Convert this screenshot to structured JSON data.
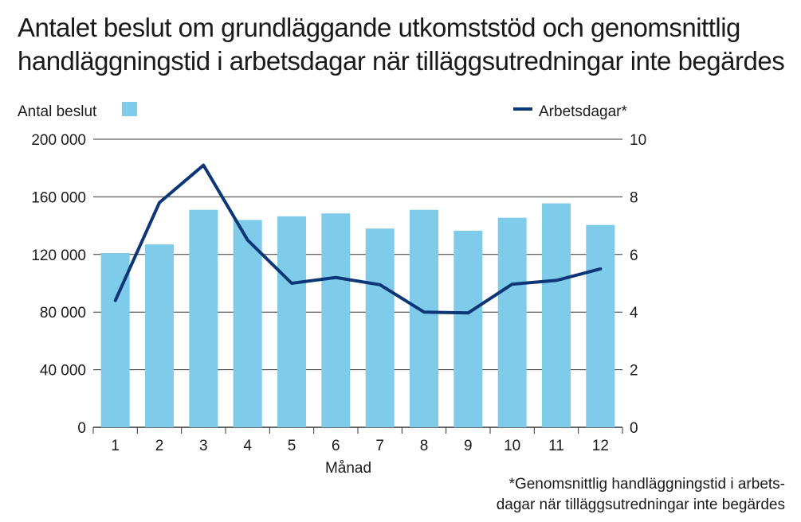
{
  "title": {
    "line1": "Antalet beslut om grundläggande utkomststöd och genomsnittlig",
    "line2": "handläggningstid i arbetsdagar när tilläggsutredningar inte begärdes"
  },
  "legend": {
    "bars_label": "Antal beslut",
    "line_label": "Arbetsdagar*"
  },
  "footnote": {
    "line1": "*Genomsnittlig handläggningstid i arbets-",
    "line2": "dagar när tilläggsutredningar inte begärdes"
  },
  "colors": {
    "bars": "#7fcbea",
    "line": "#0d3677",
    "grid": "#333333"
  },
  "chart_data": {
    "type": "bar",
    "xlabel": "Månad",
    "categories": [
      "1",
      "2",
      "3",
      "4",
      "5",
      "6",
      "7",
      "8",
      "9",
      "10",
      "11",
      "12"
    ],
    "series": [
      {
        "name": "Antal beslut",
        "type": "bar",
        "axis": "left",
        "values": [
          121000,
          127000,
          151000,
          144000,
          146500,
          148500,
          138000,
          151000,
          136500,
          145500,
          155500,
          140500
        ]
      },
      {
        "name": "Arbetsdagar*",
        "type": "line",
        "axis": "right",
        "values": [
          4.4,
          7.8,
          9.1,
          6.5,
          5.0,
          5.2,
          4.95,
          4.0,
          3.97,
          4.97,
          5.1,
          5.5
        ]
      }
    ],
    "y_left": {
      "lim": [
        0,
        200000
      ],
      "ticks": [
        "0",
        "40 000",
        "80 000",
        "120 000",
        "160 000",
        "200 000"
      ]
    },
    "y_right": {
      "lim": [
        0,
        10
      ],
      "ticks": [
        "0",
        "2",
        "4",
        "6",
        "8",
        "10"
      ]
    },
    "grid": true,
    "legend_position": "top"
  }
}
